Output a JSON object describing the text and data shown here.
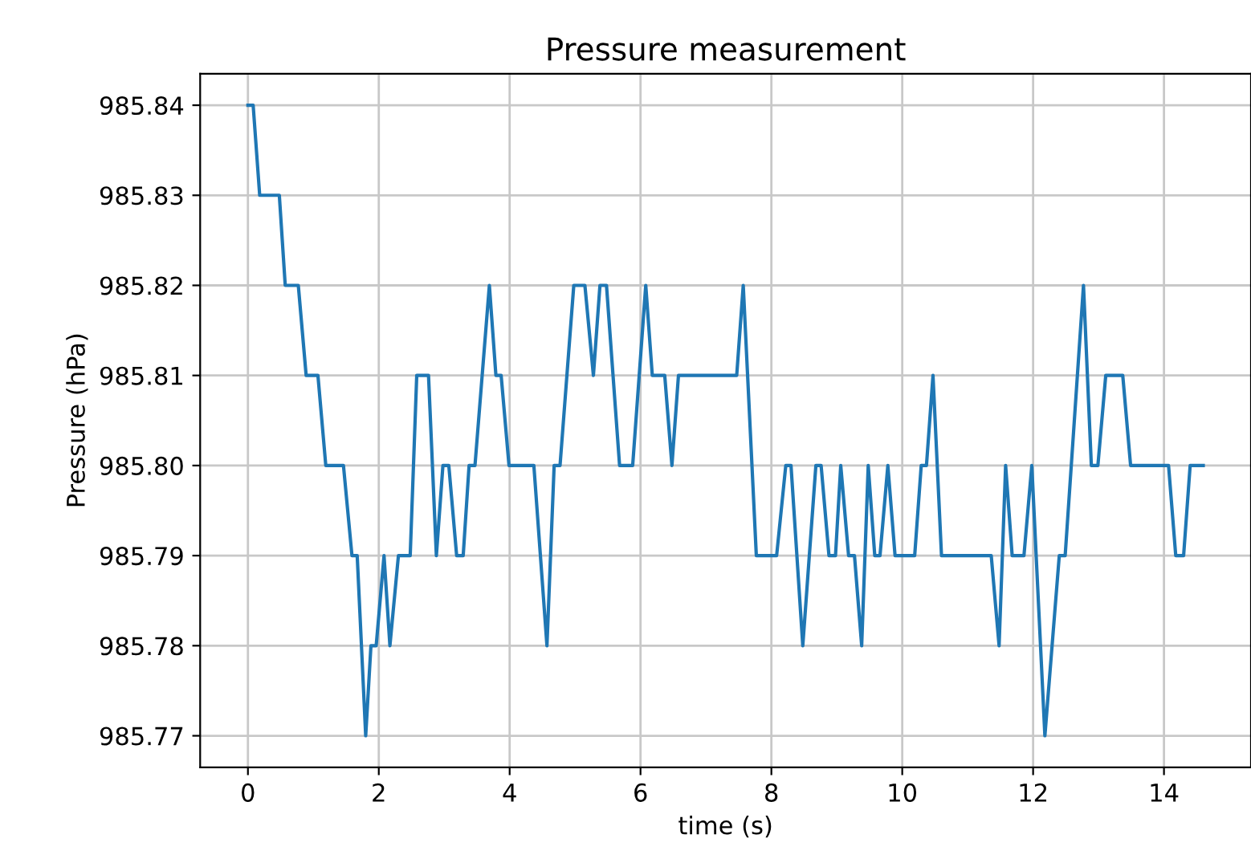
{
  "chart_data": {
    "type": "line",
    "title": "Pressure measurement",
    "xlabel": "time (s)",
    "ylabel": "Pressure (hPa)",
    "x": [
      0.0,
      0.08,
      0.18,
      0.48,
      0.57,
      0.77,
      0.89,
      1.07,
      1.19,
      1.46,
      1.59,
      1.67,
      1.8,
      1.88,
      1.96,
      2.08,
      2.17,
      2.3,
      2.48,
      2.58,
      2.76,
      2.88,
      2.98,
      3.07,
      3.19,
      3.29,
      3.38,
      3.47,
      3.69,
      3.79,
      3.87,
      3.99,
      4.37,
      4.57,
      4.68,
      4.77,
      4.98,
      5.15,
      5.28,
      5.38,
      5.48,
      5.68,
      5.88,
      6.08,
      6.18,
      6.37,
      6.48,
      6.58,
      7.47,
      7.57,
      7.77,
      8.08,
      8.22,
      8.3,
      8.48,
      8.68,
      8.76,
      8.88,
      8.98,
      9.06,
      9.18,
      9.27,
      9.38,
      9.48,
      9.58,
      9.66,
      9.78,
      9.89,
      10.19,
      10.29,
      10.37,
      10.47,
      10.6,
      11.36,
      11.48,
      11.58,
      11.68,
      11.86,
      11.98,
      12.18,
      12.4,
      12.49,
      12.77,
      12.89,
      12.99,
      13.11,
      13.37,
      13.49,
      14.07,
      14.18,
      14.3,
      14.4,
      14.6
    ],
    "series": [
      {
        "color": "#1f77b4",
        "values": [
          985.84,
          985.84,
          985.83,
          985.83,
          985.82,
          985.82,
          985.81,
          985.81,
          985.8,
          985.8,
          985.79,
          985.79,
          985.77,
          985.78,
          985.78,
          985.79,
          985.78,
          985.79,
          985.79,
          985.81,
          985.81,
          985.79,
          985.8,
          985.8,
          985.79,
          985.79,
          985.8,
          985.8,
          985.82,
          985.81,
          985.81,
          985.8,
          985.8,
          985.78,
          985.8,
          985.8,
          985.82,
          985.82,
          985.81,
          985.82,
          985.82,
          985.8,
          985.8,
          985.82,
          985.81,
          985.81,
          985.8,
          985.81,
          985.81,
          985.82,
          985.79,
          985.79,
          985.8,
          985.8,
          985.78,
          985.8,
          985.8,
          985.79,
          985.79,
          985.8,
          985.79,
          985.79,
          985.78,
          985.8,
          985.79,
          985.79,
          985.8,
          985.79,
          985.79,
          985.8,
          985.8,
          985.81,
          985.79,
          985.79,
          985.78,
          985.8,
          985.79,
          985.79,
          985.8,
          985.77,
          985.79,
          985.79,
          985.82,
          985.8,
          985.8,
          985.81,
          985.81,
          985.8,
          985.8,
          985.79,
          985.79,
          985.8,
          985.8
        ]
      }
    ],
    "xlim": [
      -0.73,
      15.33
    ],
    "xticks": [
      0,
      2,
      4,
      6,
      8,
      10,
      12,
      14
    ],
    "ylim": [
      985.7665,
      985.8435
    ],
    "yticks": [
      {
        "value": 985.77,
        "label": "985.77"
      },
      {
        "value": 985.78,
        "label": "985.78"
      },
      {
        "value": 985.79,
        "label": "985.79"
      },
      {
        "value": 985.8,
        "label": "985.80"
      },
      {
        "value": 985.81,
        "label": "985.81"
      },
      {
        "value": 985.82,
        "label": "985.82"
      },
      {
        "value": 985.83,
        "label": "985.83"
      },
      {
        "value": 985.84,
        "label": "985.84"
      }
    ],
    "grid": true
  }
}
